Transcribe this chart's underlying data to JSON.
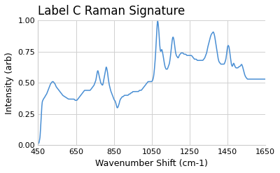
{
  "title": "Label C Raman Signature",
  "xlabel": "Wavenumber Shift (cm-1)",
  "ylabel": "Intensity (arb)",
  "xlim": [
    450,
    1650
  ],
  "ylim": [
    0.0,
    1.0
  ],
  "xticks": [
    450,
    650,
    850,
    1050,
    1250,
    1450,
    1650
  ],
  "yticks": [
    0.0,
    0.25,
    0.5,
    0.75,
    1.0
  ],
  "line_color": "#4a8fd4",
  "line_width": 1.1,
  "background_color": "#ffffff",
  "grid_color": "#d0d0d0",
  "title_fontsize": 12,
  "label_fontsize": 9,
  "tick_fontsize": 8,
  "keypoints": [
    [
      450,
      0.01
    ],
    [
      455,
      0.02
    ],
    [
      460,
      0.06
    ],
    [
      463,
      0.13
    ],
    [
      466,
      0.22
    ],
    [
      469,
      0.3
    ],
    [
      472,
      0.35
    ],
    [
      475,
      0.36
    ],
    [
      478,
      0.37
    ],
    [
      483,
      0.38
    ],
    [
      490,
      0.4
    ],
    [
      495,
      0.41
    ],
    [
      500,
      0.43
    ],
    [
      505,
      0.45
    ],
    [
      510,
      0.47
    ],
    [
      515,
      0.49
    ],
    [
      520,
      0.5
    ],
    [
      525,
      0.51
    ],
    [
      530,
      0.51
    ],
    [
      535,
      0.5
    ],
    [
      540,
      0.49
    ],
    [
      545,
      0.47
    ],
    [
      550,
      0.46
    ],
    [
      555,
      0.45
    ],
    [
      560,
      0.44
    ],
    [
      565,
      0.43
    ],
    [
      570,
      0.42
    ],
    [
      575,
      0.41
    ],
    [
      580,
      0.4
    ],
    [
      590,
      0.39
    ],
    [
      600,
      0.38
    ],
    [
      610,
      0.37
    ],
    [
      620,
      0.37
    ],
    [
      630,
      0.37
    ],
    [
      635,
      0.37
    ],
    [
      640,
      0.37
    ],
    [
      645,
      0.36
    ],
    [
      650,
      0.36
    ],
    [
      655,
      0.36
    ],
    [
      660,
      0.37
    ],
    [
      665,
      0.38
    ],
    [
      670,
      0.39
    ],
    [
      675,
      0.4
    ],
    [
      680,
      0.41
    ],
    [
      685,
      0.42
    ],
    [
      690,
      0.43
    ],
    [
      695,
      0.44
    ],
    [
      700,
      0.44
    ],
    [
      705,
      0.44
    ],
    [
      710,
      0.44
    ],
    [
      715,
      0.44
    ],
    [
      720,
      0.44
    ],
    [
      725,
      0.44
    ],
    [
      730,
      0.45
    ],
    [
      735,
      0.46
    ],
    [
      740,
      0.47
    ],
    [
      745,
      0.48
    ],
    [
      750,
      0.5
    ],
    [
      755,
      0.52
    ],
    [
      758,
      0.55
    ],
    [
      760,
      0.57
    ],
    [
      763,
      0.59
    ],
    [
      765,
      0.6
    ],
    [
      768,
      0.59
    ],
    [
      770,
      0.57
    ],
    [
      773,
      0.55
    ],
    [
      775,
      0.54
    ],
    [
      778,
      0.52
    ],
    [
      780,
      0.5
    ],
    [
      785,
      0.49
    ],
    [
      790,
      0.48
    ],
    [
      793,
      0.49
    ],
    [
      795,
      0.51
    ],
    [
      798,
      0.53
    ],
    [
      800,
      0.55
    ],
    [
      803,
      0.58
    ],
    [
      806,
      0.6
    ],
    [
      808,
      0.62
    ],
    [
      810,
      0.63
    ],
    [
      812,
      0.62
    ],
    [
      815,
      0.6
    ],
    [
      818,
      0.57
    ],
    [
      820,
      0.54
    ],
    [
      823,
      0.51
    ],
    [
      825,
      0.49
    ],
    [
      828,
      0.47
    ],
    [
      830,
      0.46
    ],
    [
      833,
      0.44
    ],
    [
      835,
      0.43
    ],
    [
      838,
      0.42
    ],
    [
      840,
      0.41
    ],
    [
      843,
      0.4
    ],
    [
      845,
      0.39
    ],
    [
      848,
      0.38
    ],
    [
      850,
      0.37
    ],
    [
      853,
      0.36
    ],
    [
      855,
      0.36
    ],
    [
      858,
      0.35
    ],
    [
      860,
      0.34
    ],
    [
      862,
      0.33
    ],
    [
      865,
      0.31
    ],
    [
      867,
      0.3
    ],
    [
      870,
      0.3
    ],
    [
      873,
      0.31
    ],
    [
      875,
      0.32
    ],
    [
      878,
      0.33
    ],
    [
      880,
      0.35
    ],
    [
      885,
      0.37
    ],
    [
      890,
      0.38
    ],
    [
      895,
      0.39
    ],
    [
      900,
      0.39
    ],
    [
      905,
      0.4
    ],
    [
      910,
      0.4
    ],
    [
      915,
      0.4
    ],
    [
      920,
      0.4
    ],
    [
      925,
      0.4
    ],
    [
      930,
      0.41
    ],
    [
      935,
      0.41
    ],
    [
      940,
      0.42
    ],
    [
      945,
      0.42
    ],
    [
      950,
      0.43
    ],
    [
      955,
      0.43
    ],
    [
      960,
      0.43
    ],
    [
      965,
      0.43
    ],
    [
      970,
      0.43
    ],
    [
      975,
      0.43
    ],
    [
      980,
      0.43
    ],
    [
      985,
      0.44
    ],
    [
      990,
      0.44
    ],
    [
      995,
      0.44
    ],
    [
      1000,
      0.45
    ],
    [
      1005,
      0.46
    ],
    [
      1010,
      0.47
    ],
    [
      1015,
      0.48
    ],
    [
      1020,
      0.49
    ],
    [
      1025,
      0.5
    ],
    [
      1030,
      0.51
    ],
    [
      1035,
      0.51
    ],
    [
      1040,
      0.51
    ],
    [
      1045,
      0.51
    ],
    [
      1050,
      0.51
    ],
    [
      1055,
      0.52
    ],
    [
      1060,
      0.55
    ],
    [
      1063,
      0.59
    ],
    [
      1066,
      0.64
    ],
    [
      1070,
      0.72
    ],
    [
      1073,
      0.82
    ],
    [
      1076,
      0.91
    ],
    [
      1079,
      0.97
    ],
    [
      1081,
      1.0
    ],
    [
      1083,
      0.99
    ],
    [
      1085,
      0.96
    ],
    [
      1088,
      0.91
    ],
    [
      1090,
      0.85
    ],
    [
      1093,
      0.79
    ],
    [
      1095,
      0.76
    ],
    [
      1098,
      0.75
    ],
    [
      1100,
      0.76
    ],
    [
      1103,
      0.77
    ],
    [
      1105,
      0.76
    ],
    [
      1108,
      0.74
    ],
    [
      1110,
      0.72
    ],
    [
      1113,
      0.69
    ],
    [
      1115,
      0.67
    ],
    [
      1118,
      0.65
    ],
    [
      1120,
      0.63
    ],
    [
      1123,
      0.62
    ],
    [
      1125,
      0.61
    ],
    [
      1128,
      0.61
    ],
    [
      1130,
      0.61
    ],
    [
      1133,
      0.61
    ],
    [
      1135,
      0.62
    ],
    [
      1138,
      0.63
    ],
    [
      1140,
      0.64
    ],
    [
      1143,
      0.65
    ],
    [
      1145,
      0.67
    ],
    [
      1148,
      0.7
    ],
    [
      1150,
      0.73
    ],
    [
      1153,
      0.77
    ],
    [
      1156,
      0.81
    ],
    [
      1158,
      0.84
    ],
    [
      1160,
      0.86
    ],
    [
      1163,
      0.87
    ],
    [
      1165,
      0.86
    ],
    [
      1168,
      0.84
    ],
    [
      1170,
      0.81
    ],
    [
      1173,
      0.78
    ],
    [
      1175,
      0.75
    ],
    [
      1178,
      0.73
    ],
    [
      1180,
      0.72
    ],
    [
      1183,
      0.71
    ],
    [
      1185,
      0.71
    ],
    [
      1188,
      0.7
    ],
    [
      1190,
      0.7
    ],
    [
      1193,
      0.71
    ],
    [
      1195,
      0.72
    ],
    [
      1200,
      0.73
    ],
    [
      1205,
      0.74
    ],
    [
      1210,
      0.74
    ],
    [
      1215,
      0.74
    ],
    [
      1220,
      0.73
    ],
    [
      1225,
      0.73
    ],
    [
      1230,
      0.73
    ],
    [
      1235,
      0.72
    ],
    [
      1240,
      0.72
    ],
    [
      1245,
      0.72
    ],
    [
      1250,
      0.72
    ],
    [
      1255,
      0.72
    ],
    [
      1260,
      0.72
    ],
    [
      1265,
      0.71
    ],
    [
      1270,
      0.7
    ],
    [
      1275,
      0.69
    ],
    [
      1280,
      0.69
    ],
    [
      1285,
      0.69
    ],
    [
      1290,
      0.68
    ],
    [
      1295,
      0.68
    ],
    [
      1300,
      0.68
    ],
    [
      1305,
      0.68
    ],
    [
      1310,
      0.68
    ],
    [
      1315,
      0.68
    ],
    [
      1320,
      0.68
    ],
    [
      1325,
      0.69
    ],
    [
      1330,
      0.7
    ],
    [
      1335,
      0.72
    ],
    [
      1340,
      0.74
    ],
    [
      1345,
      0.78
    ],
    [
      1350,
      0.81
    ],
    [
      1355,
      0.84
    ],
    [
      1360,
      0.87
    ],
    [
      1365,
      0.89
    ],
    [
      1370,
      0.9
    ],
    [
      1375,
      0.91
    ],
    [
      1378,
      0.9
    ],
    [
      1380,
      0.89
    ],
    [
      1383,
      0.87
    ],
    [
      1385,
      0.85
    ],
    [
      1390,
      0.8
    ],
    [
      1395,
      0.75
    ],
    [
      1400,
      0.7
    ],
    [
      1405,
      0.67
    ],
    [
      1410,
      0.66
    ],
    [
      1415,
      0.65
    ],
    [
      1420,
      0.65
    ],
    [
      1425,
      0.65
    ],
    [
      1430,
      0.65
    ],
    [
      1433,
      0.65
    ],
    [
      1435,
      0.66
    ],
    [
      1438,
      0.67
    ],
    [
      1440,
      0.68
    ],
    [
      1443,
      0.7
    ],
    [
      1445,
      0.73
    ],
    [
      1448,
      0.76
    ],
    [
      1450,
      0.79
    ],
    [
      1453,
      0.8
    ],
    [
      1455,
      0.8
    ],
    [
      1458,
      0.79
    ],
    [
      1460,
      0.77
    ],
    [
      1463,
      0.74
    ],
    [
      1465,
      0.71
    ],
    [
      1468,
      0.68
    ],
    [
      1470,
      0.65
    ],
    [
      1473,
      0.64
    ],
    [
      1475,
      0.63
    ],
    [
      1478,
      0.64
    ],
    [
      1480,
      0.65
    ],
    [
      1483,
      0.66
    ],
    [
      1485,
      0.65
    ],
    [
      1488,
      0.64
    ],
    [
      1490,
      0.63
    ],
    [
      1495,
      0.62
    ],
    [
      1500,
      0.62
    ],
    [
      1505,
      0.62
    ],
    [
      1510,
      0.63
    ],
    [
      1515,
      0.63
    ],
    [
      1520,
      0.64
    ],
    [
      1525,
      0.65
    ],
    [
      1530,
      0.63
    ],
    [
      1535,
      0.6
    ],
    [
      1540,
      0.57
    ],
    [
      1545,
      0.55
    ],
    [
      1550,
      0.54
    ],
    [
      1555,
      0.53
    ],
    [
      1560,
      0.53
    ],
    [
      1565,
      0.53
    ],
    [
      1570,
      0.53
    ],
    [
      1575,
      0.53
    ],
    [
      1580,
      0.53
    ],
    [
      1590,
      0.53
    ],
    [
      1600,
      0.53
    ],
    [
      1610,
      0.53
    ],
    [
      1620,
      0.53
    ],
    [
      1630,
      0.53
    ],
    [
      1640,
      0.53
    ],
    [
      1650,
      0.53
    ]
  ]
}
